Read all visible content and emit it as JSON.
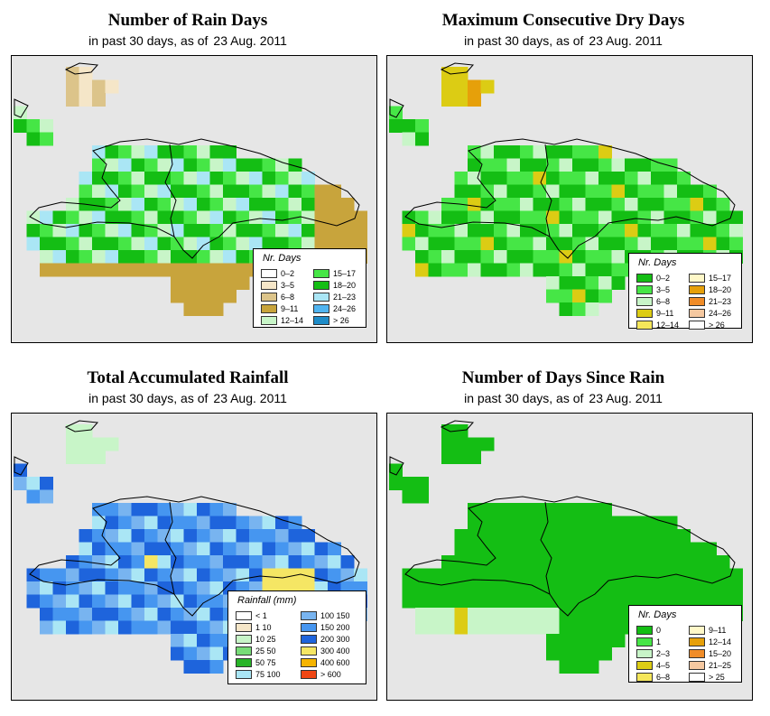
{
  "panels": [
    {
      "title": "Number of Rain Days",
      "subtitle": "in past 30 days, as of",
      "date": "23 Aug. 2011",
      "legend": {
        "title": "Nr. Days",
        "items": [
          {
            "label": "0–2",
            "color": "#ffffff"
          },
          {
            "label": "3–5",
            "color": "#f5e6c8"
          },
          {
            "label": "6–8",
            "color": "#dcc48a"
          },
          {
            "label": "9–11",
            "color": "#c8a43c"
          },
          {
            "label": "12–14",
            "color": "#c8f5c8"
          },
          {
            "label": "15–17",
            "color": "#46e646"
          },
          {
            "label": "18–20",
            "color": "#14be14"
          },
          {
            "label": "21–23",
            "color": "#aae6f5"
          },
          {
            "label": "24–26",
            "color": "#50b4f0"
          },
          {
            "label": "> 26",
            "color": "#1e8cc8"
          }
        ]
      }
    },
    {
      "title": "Maximum Consecutive Dry Days",
      "subtitle": "in past 30 days, as of",
      "date": "23 Aug. 2011",
      "legend": {
        "title": "Nr. Days",
        "items": [
          {
            "label": "0–2",
            "color": "#14be14"
          },
          {
            "label": "3–5",
            "color": "#46e646"
          },
          {
            "label": "6–8",
            "color": "#c8f5c8"
          },
          {
            "label": "9–11",
            "color": "#dccc14"
          },
          {
            "label": "12–14",
            "color": "#f5e65a"
          },
          {
            "label": "15–17",
            "color": "#fff8c8"
          },
          {
            "label": "18–20",
            "color": "#e6a00a"
          },
          {
            "label": "21–23",
            "color": "#f08c28"
          },
          {
            "label": "24–26",
            "color": "#f5c8a0"
          },
          {
            "label": "> 26",
            "color": "#ffffff"
          }
        ]
      }
    },
    {
      "title": "Total Accumulated Rainfall",
      "subtitle": "in past 30 days, as of",
      "date": "23 Aug. 2011",
      "legend": {
        "title": "Rainfall (mm)",
        "items": [
          {
            "label": "< 1",
            "color": "#ffffff"
          },
          {
            "label": "1    10",
            "color": "#f5e6c8"
          },
          {
            "label": "10    25",
            "color": "#c8f5c8"
          },
          {
            "label": "25    50",
            "color": "#78dc78"
          },
          {
            "label": "50    75",
            "color": "#28b428"
          },
          {
            "label": "75   100",
            "color": "#aae6f5"
          },
          {
            "label": "100   150",
            "color": "#78b4f0"
          },
          {
            "label": "150   200",
            "color": "#4696f0"
          },
          {
            "label": "200   300",
            "color": "#1e64dc"
          },
          {
            "label": "300   400",
            "color": "#f5e664"
          },
          {
            "label": "400   600",
            "color": "#f5b400"
          },
          {
            "label": "> 600",
            "color": "#f04614"
          }
        ]
      }
    },
    {
      "title": "Number of Days Since Rain",
      "subtitle": "in past 30 days, as of",
      "date": "23 Aug. 2011",
      "legend": {
        "title": "Nr. Days",
        "items": [
          {
            "label": "0",
            "color": "#14be14"
          },
          {
            "label": "1",
            "color": "#46e646"
          },
          {
            "label": "2–3",
            "color": "#c8f5c8"
          },
          {
            "label": "4–5",
            "color": "#dccc14"
          },
          {
            "label": "6–8",
            "color": "#f5e65a"
          },
          {
            "label": "9–11",
            "color": "#fff8c8"
          },
          {
            "label": "12–14",
            "color": "#e6a00a"
          },
          {
            "label": "15–20",
            "color": "#f08c28"
          },
          {
            "label": "21–25",
            "color": "#f5c8a0"
          },
          {
            "label": "> 25",
            "color": "#ffffff"
          }
        ]
      }
    }
  ]
}
